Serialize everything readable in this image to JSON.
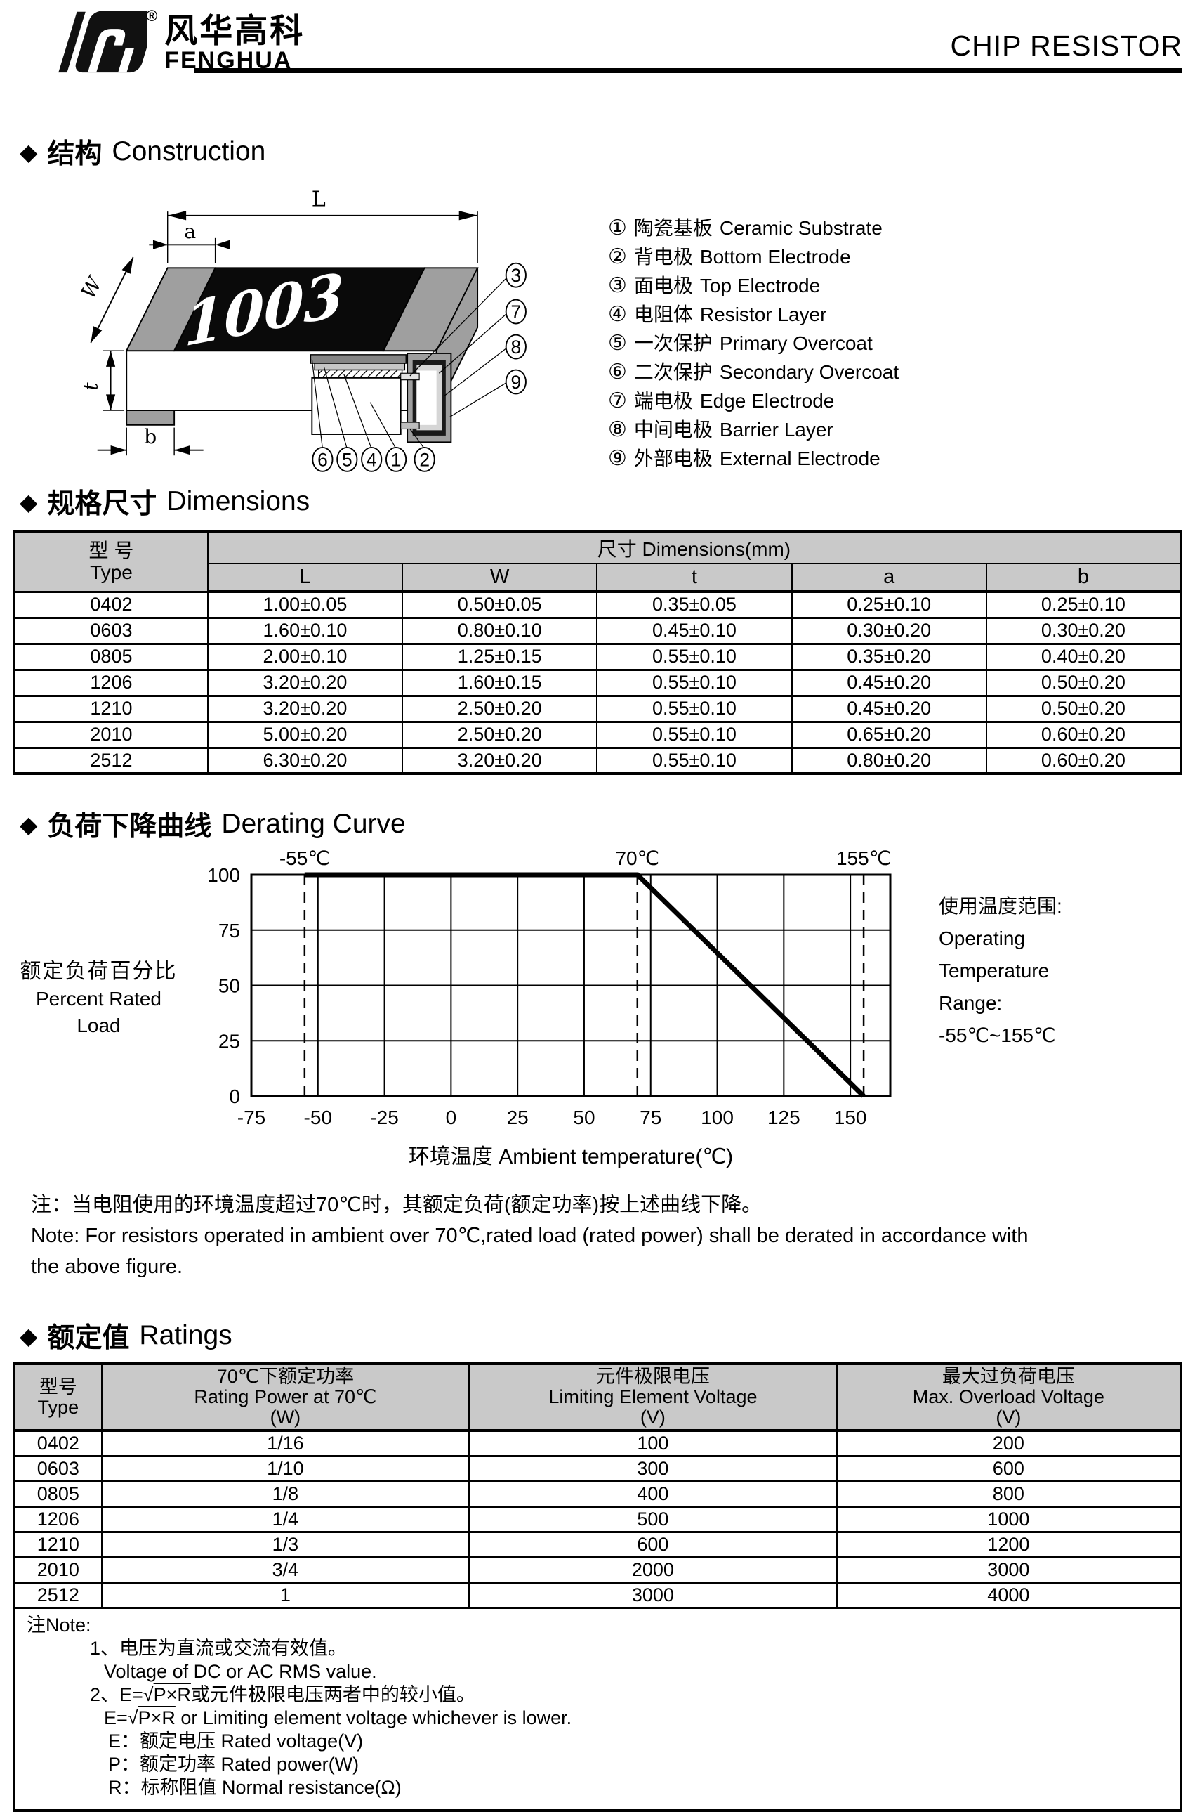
{
  "ui": {
    "diamond": "◆",
    "registered": "®"
  },
  "header": {
    "logo_cn": "风华高科",
    "logo_en": "FENGHUA",
    "title": "CHIP RESISTOR"
  },
  "sections": {
    "construction": {
      "cn": "结构",
      "en": "Construction"
    },
    "dimensions": {
      "cn": "规格尺寸",
      "en": "Dimensions"
    },
    "derating": {
      "cn": "负荷下降曲线",
      "en": "Derating Curve"
    },
    "ratings": {
      "cn": "额定值",
      "en": "Ratings"
    }
  },
  "construction": {
    "marking": "1003",
    "dim_labels": {
      "L": "L",
      "a": "a",
      "W": "W",
      "t": "t",
      "b": "b"
    },
    "callouts_bottom": [
      "6",
      "5",
      "4",
      "1",
      "2"
    ],
    "callouts_right": [
      "3",
      "7",
      "8",
      "9"
    ],
    "legend": [
      {
        "num": "①",
        "cn": "陶瓷基板",
        "en": "Ceramic Substrate"
      },
      {
        "num": "②",
        "cn": "背电极",
        "en": "Bottom Electrode"
      },
      {
        "num": "③",
        "cn": "面电极",
        "en": "Top Electrode"
      },
      {
        "num": "④",
        "cn": "电阻体",
        "en": "Resistor Layer"
      },
      {
        "num": "⑤",
        "cn": "一次保护",
        "en": "Primary Overcoat"
      },
      {
        "num": "⑥",
        "cn": "二次保护",
        "en": "Secondary Overcoat"
      },
      {
        "num": "⑦",
        "cn": "端电极",
        "en": "Edge Electrode"
      },
      {
        "num": "⑧",
        "cn": "中间电极",
        "en": "Barrier Layer"
      },
      {
        "num": "⑨",
        "cn": "外部电极",
        "en": "External Electrode"
      }
    ]
  },
  "dimensions_table": {
    "col_type_cn": "型 号",
    "col_type_en": "Type",
    "span_header": "尺寸 Dimensions(mm)",
    "cols": [
      "L",
      "W",
      "t",
      "a",
      "b"
    ],
    "rows": [
      {
        "type": "0402",
        "L": "1.00±0.05",
        "W": "0.50±0.05",
        "t": "0.35±0.05",
        "a": "0.25±0.10",
        "b": "0.25±0.10"
      },
      {
        "type": "0603",
        "L": "1.60±0.10",
        "W": "0.80±0.10",
        "t": "0.45±0.10",
        "a": "0.30±0.20",
        "b": "0.30±0.20"
      },
      {
        "type": "0805",
        "L": "2.00±0.10",
        "W": "1.25±0.15",
        "t": "0.55±0.10",
        "a": "0.35±0.20",
        "b": "0.40±0.20"
      },
      {
        "type": "1206",
        "L": "3.20±0.20",
        "W": "1.60±0.15",
        "t": "0.55±0.10",
        "a": "0.45±0.20",
        "b": "0.50±0.20"
      },
      {
        "type": "1210",
        "L": "3.20±0.20",
        "W": "2.50±0.20",
        "t": "0.55±0.10",
        "a": "0.45±0.20",
        "b": "0.50±0.20"
      },
      {
        "type": "2010",
        "L": "5.00±0.20",
        "W": "2.50±0.20",
        "t": "0.55±0.10",
        "a": "0.65±0.20",
        "b": "0.60±0.20"
      },
      {
        "type": "2512",
        "L": "6.30±0.20",
        "W": "3.20±0.20",
        "t": "0.55±0.10",
        "a": "0.80±0.20",
        "b": "0.60±0.20"
      }
    ]
  },
  "chart_data": {
    "type": "line",
    "title": "负荷下降曲线 Derating Curve",
    "xlabel": "环境温度 Ambient temperature(℃)",
    "ylabel_cn": "额定负荷百分比",
    "ylabel_en": "Percent Rated Load",
    "xlim": [
      -75,
      165
    ],
    "ylim": [
      0,
      100
    ],
    "x_ticks": [
      -75,
      -50,
      -25,
      0,
      25,
      50,
      75,
      100,
      125,
      150
    ],
    "y_ticks": [
      0,
      25,
      50,
      75,
      100
    ],
    "grid": true,
    "dashed_x": [
      {
        "value": -55,
        "label": "-55℃"
      },
      {
        "value": 70,
        "label": "70℃"
      },
      {
        "value": 155,
        "label": "155℃"
      }
    ],
    "series": [
      {
        "name": "derating-line",
        "points": [
          [
            -55,
            100
          ],
          [
            70,
            100
          ],
          [
            155,
            0
          ]
        ]
      }
    ],
    "annotation_right": [
      "使用温度范围:",
      "Operating",
      "Temperature",
      "Range:",
      "-55℃~155℃"
    ]
  },
  "derating_note": {
    "cn": "注：当电阻使用的环境温度超过70℃时，其额定负荷(额定功率)按上述曲线下降。",
    "en1": "Note: For resistors operated in ambient over 70℃,rated  load (rated power) shall be derated in accordance with",
    "en2": "the above figure."
  },
  "ratings_table": {
    "col_type_cn": "型号",
    "col_type_en": "Type",
    "col_power_cn": "70℃下额定功率",
    "col_power_en": "Rating Power  at 70℃",
    "col_power_unit": "(W)",
    "col_lev_cn": "元件极限电压",
    "col_lev_en": "Limiting Element  Voltage",
    "col_lev_unit": "(V)",
    "col_mov_cn": "最大过负荷电压",
    "col_mov_en": "Max. Overload Voltage",
    "col_mov_unit": "(V)",
    "rows": [
      {
        "type": "0402",
        "power": "1/16",
        "lev": "100",
        "mov": "200"
      },
      {
        "type": "0603",
        "power": "1/10",
        "lev": "300",
        "mov": "600"
      },
      {
        "type": "0805",
        "power": "1/8",
        "lev": "400",
        "mov": "800"
      },
      {
        "type": "1206",
        "power": "1/4",
        "lev": "500",
        "mov": "1000"
      },
      {
        "type": "1210",
        "power": "1/3",
        "lev": "600",
        "mov": "1200"
      },
      {
        "type": "2010",
        "power": "3/4",
        "lev": "2000",
        "mov": "3000"
      },
      {
        "type": "2512",
        "power": "1",
        "lev": "3000",
        "mov": "4000"
      }
    ]
  },
  "ratings_note": {
    "label": "注Note:",
    "n1_cn": "1、电压为直流或交流有效值。",
    "n1_en": "Voltage of DC or AC RMS value.",
    "n2_cn_pre": "2、E=√",
    "n2_cn_rad": "P×R",
    "n2_cn_post": "或元件极限电压两者中的较小值。",
    "n2_en_pre": "E=√",
    "n2_en_rad": "P×R",
    "n2_en_post": " or Limiting element voltage whichever is lower.",
    "e_line": "E：额定电压 Rated voltage(V)",
    "p_line": "P：额定功率 Rated power(W)",
    "r_line": "R：标称阻值 Normal resistance(Ω)"
  }
}
